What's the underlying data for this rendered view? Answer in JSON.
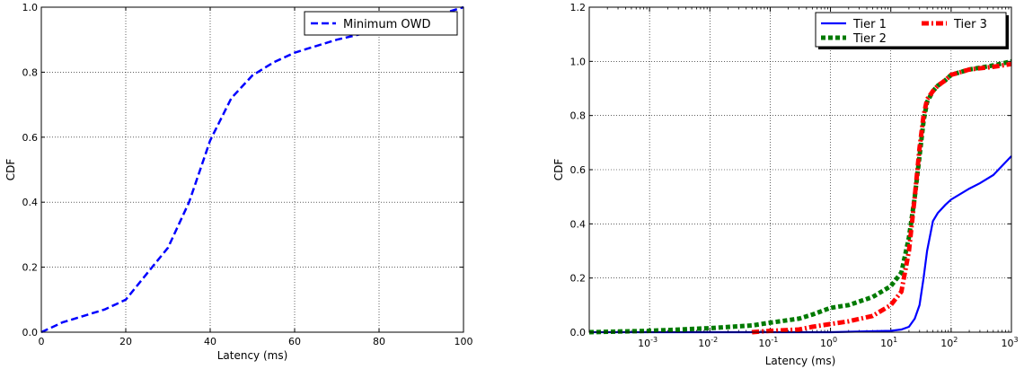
{
  "chart_data": [
    {
      "type": "line",
      "xlabel": "Latency (ms)",
      "ylabel": "CDF",
      "xlim": [
        0,
        100
      ],
      "ylim": [
        0,
        1.0
      ],
      "x_scale": "linear",
      "grid": true,
      "legend_placement": "top-right",
      "x_ticks": [
        "0",
        "20",
        "40",
        "60",
        "80",
        "100"
      ],
      "y_ticks": [
        "0.0",
        "0.2",
        "0.4",
        "0.6",
        "0.8",
        "1.0"
      ],
      "series": [
        {
          "name": "Minimum OWD",
          "color": "#0000ff",
          "style": "dashed",
          "x": [
            0,
            5,
            10,
            15,
            20,
            25,
            30,
            35,
            40,
            45,
            50,
            55,
            60,
            65,
            70,
            80,
            90,
            95,
            100
          ],
          "y": [
            0.0,
            0.03,
            0.05,
            0.07,
            0.1,
            0.18,
            0.26,
            0.4,
            0.59,
            0.72,
            0.79,
            0.83,
            0.86,
            0.88,
            0.9,
            0.93,
            0.96,
            0.98,
            1.0
          ]
        }
      ]
    },
    {
      "type": "line",
      "xlabel": "Latency (ms)",
      "ylabel": "CDF",
      "xlim": [
        0.0001,
        1000
      ],
      "ylim": [
        0,
        1.2
      ],
      "x_scale": "log",
      "grid": true,
      "legend_placement": "top-right",
      "x_ticks": [
        {
          "base": "10",
          "exp": "-3"
        },
        {
          "base": "10",
          "exp": "-2"
        },
        {
          "base": "10",
          "exp": "-1"
        },
        {
          "base": "10",
          "exp": "0"
        },
        {
          "base": "10",
          "exp": "1"
        },
        {
          "base": "10",
          "exp": "2"
        },
        {
          "base": "10",
          "exp": "3"
        }
      ],
      "y_ticks": [
        "0.0",
        "0.2",
        "0.4",
        "0.6",
        "0.8",
        "1.0",
        "1.2"
      ],
      "series": [
        {
          "name": "Tier 1",
          "color": "#0000ff",
          "style": "solid",
          "x": [
            0.0001,
            1,
            10,
            15,
            20,
            25,
            30,
            35,
            40,
            50,
            60,
            80,
            100,
            200,
            300,
            500,
            1000
          ],
          "y": [
            0.0,
            0.0,
            0.005,
            0.01,
            0.02,
            0.05,
            0.1,
            0.2,
            0.3,
            0.41,
            0.44,
            0.47,
            0.49,
            0.53,
            0.55,
            0.58,
            0.65
          ]
        },
        {
          "name": "Tier 2",
          "color": "#007a00",
          "style": "dotted",
          "x": [
            0.0001,
            0.001,
            0.01,
            0.05,
            0.1,
            0.3,
            0.5,
            1,
            2,
            5,
            10,
            15,
            20,
            25,
            30,
            35,
            40,
            50,
            60,
            80,
            100,
            200,
            500,
            1000
          ],
          "y": [
            0.0,
            0.005,
            0.015,
            0.025,
            0.035,
            0.05,
            0.065,
            0.09,
            0.1,
            0.13,
            0.17,
            0.22,
            0.35,
            0.5,
            0.65,
            0.78,
            0.85,
            0.89,
            0.91,
            0.93,
            0.95,
            0.97,
            0.985,
            1.0
          ]
        },
        {
          "name": "Tier 3",
          "color": "#ff0000",
          "style": "dash-dot",
          "x": [
            0.05,
            0.1,
            0.3,
            0.5,
            1,
            2,
            5,
            10,
            15,
            20,
            25,
            30,
            35,
            40,
            50,
            60,
            80,
            100,
            200,
            500,
            1000
          ],
          "y": [
            0.0,
            0.005,
            0.01,
            0.02,
            0.03,
            0.04,
            0.06,
            0.1,
            0.15,
            0.3,
            0.5,
            0.68,
            0.8,
            0.86,
            0.89,
            0.91,
            0.93,
            0.95,
            0.97,
            0.98,
            0.99
          ]
        }
      ]
    }
  ]
}
